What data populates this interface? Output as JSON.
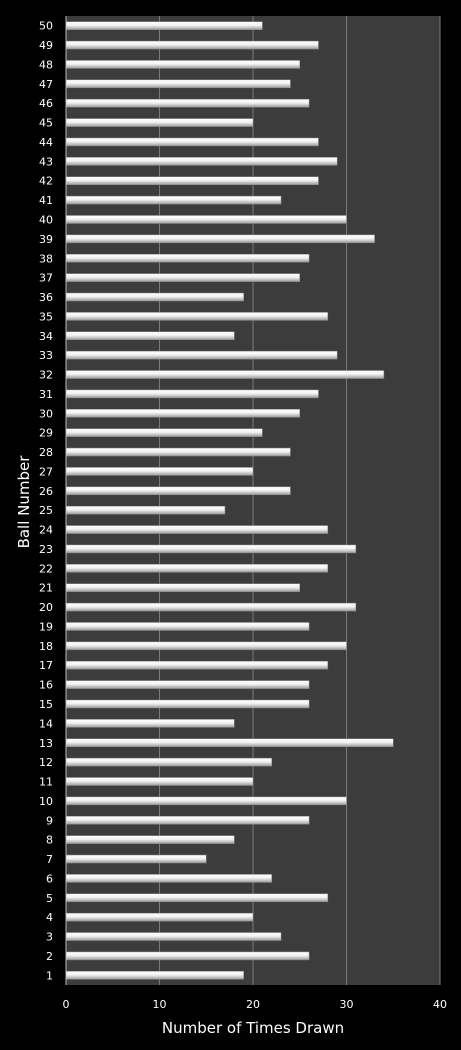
{
  "chart_data": {
    "type": "bar",
    "orientation": "horizontal",
    "xlabel": "Number of Times Drawn",
    "ylabel": "Ball Number",
    "xlim": [
      0,
      40
    ],
    "x_ticks": [
      0,
      10,
      20,
      30,
      40
    ],
    "grid": true,
    "categories": [
      "1",
      "2",
      "3",
      "4",
      "5",
      "6",
      "7",
      "8",
      "9",
      "10",
      "11",
      "12",
      "13",
      "14",
      "15",
      "16",
      "17",
      "18",
      "19",
      "20",
      "21",
      "22",
      "23",
      "24",
      "25",
      "26",
      "27",
      "28",
      "29",
      "30",
      "31",
      "32",
      "33",
      "34",
      "35",
      "36",
      "37",
      "38",
      "39",
      "40",
      "41",
      "42",
      "43",
      "44",
      "45",
      "46",
      "47",
      "48",
      "49",
      "50"
    ],
    "values": [
      19,
      26,
      23,
      20,
      28,
      22,
      15,
      18,
      26,
      30,
      20,
      22,
      35,
      18,
      26,
      26,
      28,
      30,
      26,
      31,
      25,
      28,
      31,
      28,
      17,
      24,
      20,
      24,
      21,
      25,
      27,
      34,
      29,
      18,
      28,
      19,
      25,
      26,
      33,
      30,
      23,
      27,
      29,
      27,
      20,
      26,
      24,
      25,
      27,
      21
    ],
    "colors": {
      "background": "#000000",
      "plot_area": "#3c3c3c",
      "bar": "#e6e6e6",
      "gridline": "#7a7a7a",
      "text": "#ffffff"
    }
  }
}
